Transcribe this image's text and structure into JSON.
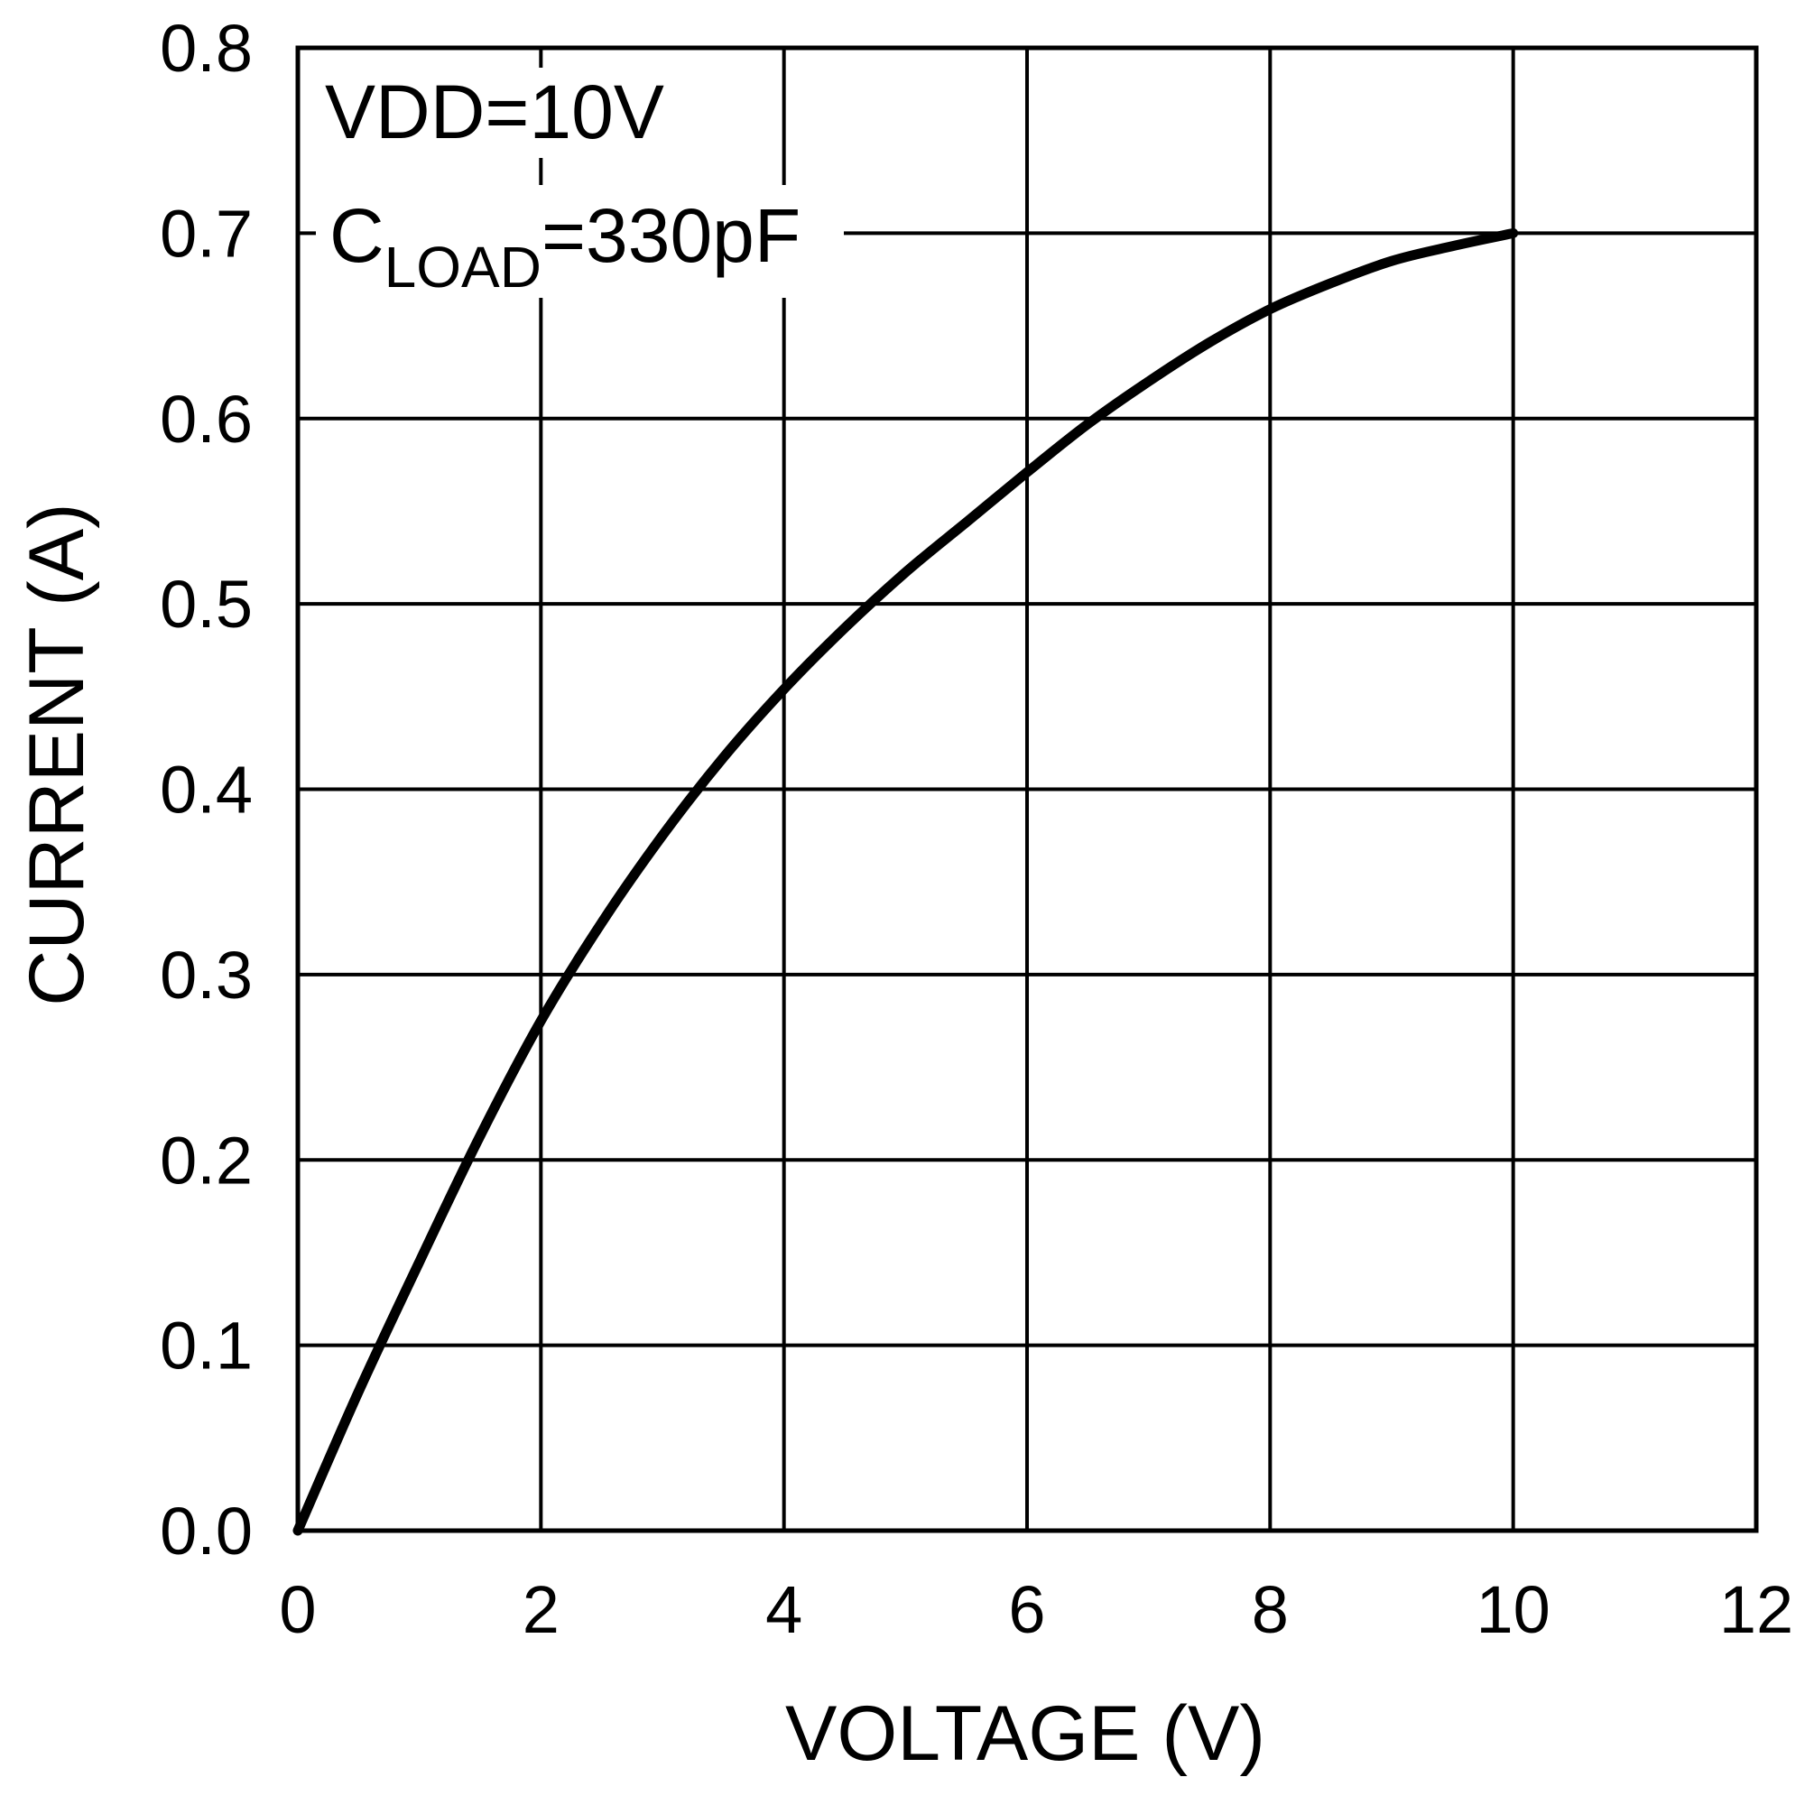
{
  "chart_data": {
    "type": "line",
    "title": "",
    "xlabel": "VOLTAGE (V)",
    "ylabel": "CURRENT (A)",
    "xlim": [
      0,
      12
    ],
    "ylim": [
      0,
      0.8
    ],
    "grid": true,
    "xticks": [
      0,
      2,
      4,
      6,
      8,
      10,
      12
    ],
    "xtick_labels": [
      "0",
      "2",
      "4",
      "6",
      "8",
      "10",
      "12"
    ],
    "yticks": [
      0,
      0.1,
      0.2,
      0.3,
      0.4,
      0.5,
      0.6,
      0.7,
      0.8
    ],
    "ytick_labels": [
      "0.0",
      "0.1",
      "0.2",
      "0.3",
      "0.4",
      "0.5",
      "0.6",
      "0.7",
      "0.8"
    ],
    "annotations": {
      "line1": "VDD=10V",
      "line2_main": "C",
      "line2_sub": "LOAD",
      "line2_rest": "=330pF"
    },
    "series": [
      {
        "x": [
          0,
          0.5,
          1,
          1.5,
          2,
          2.5,
          3,
          3.5,
          4,
          4.5,
          5,
          5.5,
          6,
          6.5,
          7,
          7.5,
          8,
          8.5,
          9,
          9.5,
          10
        ],
        "y": [
          0,
          0.075,
          0.145,
          0.213,
          0.275,
          0.328,
          0.375,
          0.417,
          0.454,
          0.487,
          0.517,
          0.544,
          0.571,
          0.597,
          0.62,
          0.641,
          0.659,
          0.673,
          0.685,
          0.693,
          0.7
        ]
      }
    ],
    "colors": {
      "line": "#000000",
      "grid": "#000000",
      "background": "#ffffff"
    }
  }
}
